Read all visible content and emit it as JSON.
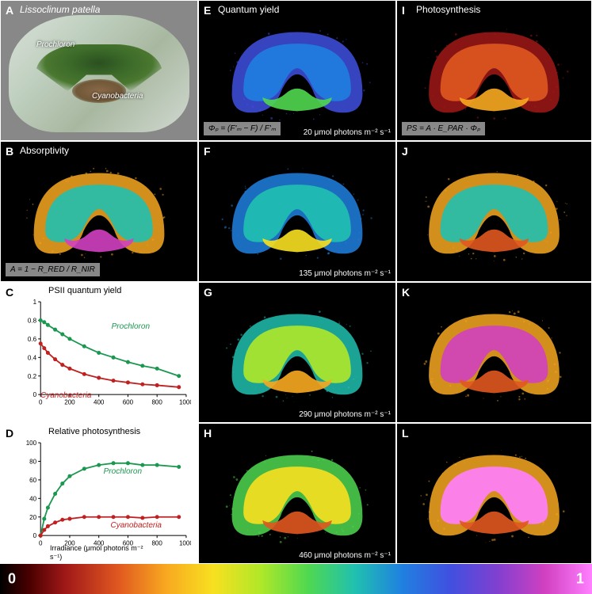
{
  "panels": {
    "A": {
      "label": "A",
      "title": "Lissoclinum patella",
      "labels": {
        "prochloron": "Prochloron",
        "cyano": "Cyanobacteria"
      }
    },
    "B": {
      "label": "B",
      "title": "Absorptivity",
      "formula": "A = 1 − R_RED / R_NIR",
      "colors_outer": "#f8a820",
      "colors_mid": "#20c0b0",
      "colors_inner": "#d040c0"
    },
    "C": {
      "label": "C",
      "title": "PSII quantum yield",
      "x": [
        0,
        25,
        50,
        100,
        150,
        200,
        300,
        400,
        500,
        600,
        700,
        800,
        950
      ],
      "prochloron_y": [
        0.8,
        0.78,
        0.75,
        0.7,
        0.65,
        0.6,
        0.52,
        0.45,
        0.4,
        0.35,
        0.31,
        0.28,
        0.2
      ],
      "cyano_y": [
        0.55,
        0.5,
        0.45,
        0.38,
        0.32,
        0.28,
        0.22,
        0.18,
        0.15,
        0.13,
        0.11,
        0.1,
        0.08
      ],
      "prochloron_color": "#1a9850",
      "cyano_color": "#c02020",
      "prochloron_label": "Prochloron",
      "cyano_label": "Cyanobacteria",
      "xlim": [
        0,
        1000
      ],
      "ylim": [
        0,
        1
      ],
      "yticks": [
        0,
        0.2,
        0.4,
        0.6,
        0.8,
        1
      ],
      "xtick_step": 200
    },
    "D": {
      "label": "D",
      "title": "Relative photosynthesis",
      "x": [
        0,
        25,
        50,
        100,
        150,
        200,
        300,
        400,
        500,
        600,
        700,
        800,
        950
      ],
      "prochloron_y": [
        0,
        18,
        30,
        45,
        56,
        64,
        72,
        76,
        78,
        78,
        76,
        76,
        74
      ],
      "cyano_y": [
        0,
        6,
        10,
        14,
        17,
        18,
        20,
        20,
        20,
        20,
        19,
        20,
        20
      ],
      "prochloron_color": "#1a9850",
      "cyano_color": "#c02020",
      "prochloron_label": "Prochloron",
      "cyano_label": "Cyanobacteria",
      "xlim": [
        0,
        1000
      ],
      "ylim": [
        0,
        100
      ],
      "yticks": [
        0,
        20,
        40,
        60,
        80,
        100
      ],
      "xtick_step": 200,
      "xlabel": "Irradiance (μmol photons m⁻² s⁻¹)"
    },
    "E": {
      "label": "E",
      "title": "Quantum yield",
      "formula": "Φₚ = (F'ₘ − F) / F'ₘ",
      "caption": "20 μmol photons m⁻² s⁻¹",
      "c1": "#4050e0",
      "c2": "#2080e0",
      "c3": "#50d850"
    },
    "F": {
      "label": "F",
      "caption": "135 μmol photons m⁻² s⁻¹",
      "c1": "#2080e0",
      "c2": "#20c0b0",
      "c3": "#f8e020"
    },
    "G": {
      "label": "G",
      "caption": "290 μmol photons m⁻² s⁻¹",
      "c1": "#20c0b0",
      "c2": "#b0e828",
      "c3": "#f8a820"
    },
    "H": {
      "label": "H",
      "caption": "460 μmol photons m⁻² s⁻¹",
      "c1": "#50d850",
      "c2": "#f8e020",
      "c3": "#e05820"
    },
    "I": {
      "label": "I",
      "title": "Photosynthesis",
      "formula": "PS = A · E_PAR · Φₚ",
      "c1": "#a01818",
      "c2": "#e05820",
      "c3": "#f8a820"
    },
    "J": {
      "label": "J",
      "c1": "#f8a820",
      "c2": "#20c0b0",
      "c3": "#e05820"
    },
    "K": {
      "label": "K",
      "c1": "#f8a820",
      "c2": "#d040c0",
      "c3": "#e05820"
    },
    "L": {
      "label": "L",
      "c1": "#f8a820",
      "c2": "#ff80ff",
      "c3": "#e05820"
    }
  },
  "scale": {
    "min": "0",
    "max": "1"
  }
}
